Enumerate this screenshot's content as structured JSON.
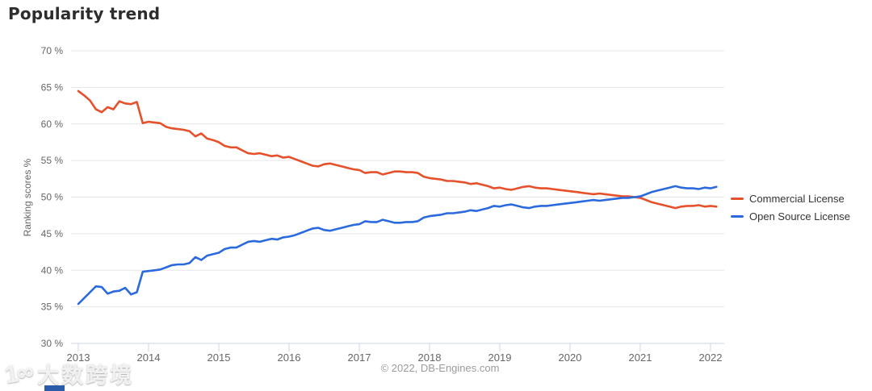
{
  "page": {
    "title": "Popularity trend"
  },
  "y_axis": {
    "title": "Ranking scores %"
  },
  "footer": {
    "copyright": "© 2022, DB-Engines.com"
  },
  "watermark": {
    "logo": "1∞",
    "text": "大数跨境",
    "accent_color": "#2a5caa"
  },
  "colors": {
    "grid": "#e6e6e6",
    "axis": "#ccd6eb",
    "tick_label": "#666666",
    "title": "#2d2d2d",
    "legend_label": "#333333",
    "copyright": "#9b9b9b"
  },
  "chart_data": {
    "type": "line",
    "title": "Popularity trend",
    "xlabel": "",
    "ylabel": "Ranking scores %",
    "ylim": [
      30,
      70
    ],
    "y_ticks": [
      70,
      65,
      60,
      55,
      50,
      45,
      40,
      35,
      30
    ],
    "y_tick_suffix": " %",
    "x_ticks": [
      "2013",
      "2014",
      "2015",
      "2016",
      "2017",
      "2018",
      "2019",
      "2020",
      "2021",
      "2022"
    ],
    "x_resolution": "monthly, Jan 2013 – Feb 2022",
    "grid": true,
    "legend_position": "right",
    "series": [
      {
        "name": "Commercial License",
        "color": "#e6502a",
        "values": [
          64.5,
          63.9,
          63.2,
          62.0,
          61.6,
          62.3,
          62.0,
          63.1,
          62.8,
          62.7,
          63.0,
          60.1,
          60.3,
          60.2,
          60.1,
          59.6,
          59.4,
          59.3,
          59.2,
          59.0,
          58.3,
          58.7,
          58.0,
          57.8,
          57.5,
          57.0,
          56.8,
          56.8,
          56.4,
          56.0,
          55.9,
          56.0,
          55.8,
          55.6,
          55.7,
          55.4,
          55.5,
          55.2,
          54.9,
          54.6,
          54.3,
          54.2,
          54.5,
          54.6,
          54.4,
          54.2,
          54.0,
          53.8,
          53.7,
          53.3,
          53.4,
          53.4,
          53.1,
          53.3,
          53.5,
          53.5,
          53.4,
          53.4,
          53.3,
          52.8,
          52.6,
          52.5,
          52.4,
          52.2,
          52.2,
          52.1,
          52.0,
          51.8,
          51.9,
          51.7,
          51.5,
          51.2,
          51.3,
          51.1,
          51.0,
          51.2,
          51.4,
          51.5,
          51.3,
          51.2,
          51.2,
          51.1,
          51.0,
          50.9,
          50.8,
          50.7,
          50.6,
          50.5,
          50.4,
          50.5,
          50.4,
          50.3,
          50.2,
          50.1,
          50.1,
          50.0,
          49.9,
          49.6,
          49.3,
          49.1,
          48.9,
          48.7,
          48.5,
          48.7,
          48.8,
          48.8,
          48.9,
          48.7,
          48.8,
          48.7
        ]
      },
      {
        "name": "Open Source License",
        "color": "#2b6ade",
        "values": [
          35.4,
          36.2,
          37.0,
          37.8,
          37.7,
          36.8,
          37.1,
          37.2,
          37.6,
          36.7,
          37.0,
          39.8,
          39.9,
          40.0,
          40.1,
          40.4,
          40.7,
          40.8,
          40.8,
          41.0,
          41.8,
          41.4,
          42.0,
          42.2,
          42.4,
          42.9,
          43.1,
          43.1,
          43.5,
          43.9,
          44.0,
          43.9,
          44.1,
          44.3,
          44.2,
          44.5,
          44.6,
          44.8,
          45.1,
          45.4,
          45.7,
          45.8,
          45.5,
          45.4,
          45.6,
          45.8,
          46.0,
          46.2,
          46.3,
          46.7,
          46.6,
          46.6,
          46.9,
          46.7,
          46.5,
          46.5,
          46.6,
          46.6,
          46.7,
          47.2,
          47.4,
          47.5,
          47.6,
          47.8,
          47.8,
          47.9,
          48.0,
          48.2,
          48.1,
          48.3,
          48.5,
          48.8,
          48.7,
          48.9,
          49.0,
          48.8,
          48.6,
          48.5,
          48.7,
          48.8,
          48.8,
          48.9,
          49.0,
          49.1,
          49.2,
          49.3,
          49.4,
          49.5,
          49.6,
          49.5,
          49.6,
          49.7,
          49.8,
          49.9,
          49.9,
          50.0,
          50.1,
          50.4,
          50.7,
          50.9,
          51.1,
          51.3,
          51.5,
          51.3,
          51.2,
          51.2,
          51.1,
          51.3,
          51.2,
          51.4
        ]
      }
    ]
  }
}
